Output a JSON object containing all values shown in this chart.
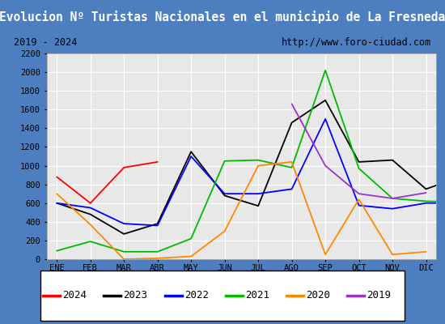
{
  "title": "Evolucion Nº Turistas Nacionales en el municipio de La Fresneda",
  "subtitle_left": "2019 - 2024",
  "subtitle_right": "http://www.foro-ciudad.com",
  "title_bg": "#4d7ebf",
  "title_color": "white",
  "border_color": "#4d7ebf",
  "months": [
    "ENE",
    "FEB",
    "MAR",
    "ABR",
    "MAY",
    "JUN",
    "JUL",
    "AGO",
    "SEP",
    "OCT",
    "NOV",
    "DIC"
  ],
  "ylim": [
    0,
    2200
  ],
  "yticks": [
    0,
    200,
    400,
    600,
    800,
    1000,
    1200,
    1400,
    1600,
    1800,
    2000,
    2200
  ],
  "plot_bg": "#e8e8e8",
  "series": {
    "2024": {
      "color": "#ff0000",
      "data": [
        880,
        600,
        980,
        1040,
        null,
        null,
        null,
        null,
        null,
        null,
        null,
        null
      ]
    },
    "2023": {
      "color": "#000000",
      "data": [
        600,
        480,
        270,
        380,
        1150,
        680,
        570,
        1460,
        1700,
        1040,
        1060,
        750,
        880
      ]
    },
    "2022": {
      "color": "#0000ff",
      "data": [
        600,
        550,
        380,
        360,
        1100,
        700,
        700,
        750,
        1500,
        575,
        540,
        600,
        600
      ]
    },
    "2021": {
      "color": "#00bb00",
      "data": [
        90,
        190,
        80,
        80,
        220,
        1050,
        1060,
        980,
        2020,
        970,
        650,
        620,
        610
      ]
    },
    "2020": {
      "color": "#ff8800",
      "data": [
        700,
        370,
        0,
        10,
        30,
        300,
        1000,
        1040,
        50,
        640,
        50,
        80
      ]
    },
    "2019": {
      "color": "#9933cc",
      "data": [
        null,
        null,
        null,
        null,
        null,
        null,
        null,
        1660,
        1000,
        700,
        650,
        710
      ]
    }
  },
  "legend_order": [
    "2024",
    "2023",
    "2022",
    "2021",
    "2020",
    "2019"
  ]
}
